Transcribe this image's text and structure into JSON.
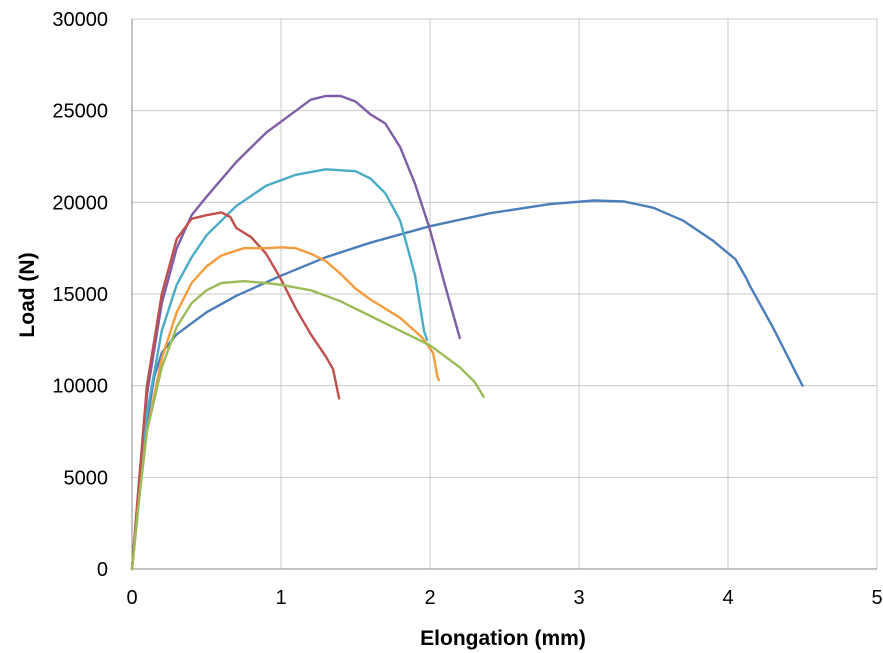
{
  "chart_data": {
    "type": "line",
    "title": "",
    "xlabel": "Elongation (mm)",
    "ylabel": "Load (N)",
    "xlim": [
      0,
      5
    ],
    "ylim": [
      0,
      30000
    ],
    "xticks": [
      0,
      1,
      2,
      3,
      4,
      5
    ],
    "yticks": [
      0,
      5000,
      10000,
      15000,
      20000,
      25000,
      30000
    ],
    "grid": true,
    "legend": "none",
    "series": [
      {
        "color": "#4a7ebb",
        "points": [
          [
            0,
            0
          ],
          [
            0.05,
            4000
          ],
          [
            0.1,
            8000
          ],
          [
            0.15,
            10500
          ],
          [
            0.2,
            11800
          ],
          [
            0.3,
            12800
          ],
          [
            0.5,
            14000
          ],
          [
            0.7,
            14900
          ],
          [
            1,
            16000
          ],
          [
            1.3,
            17000
          ],
          [
            1.6,
            17800
          ],
          [
            2,
            18700
          ],
          [
            2.4,
            19400
          ],
          [
            2.8,
            19900
          ],
          [
            3.1,
            20100
          ],
          [
            3.3,
            20050
          ],
          [
            3.5,
            19700
          ],
          [
            3.7,
            19000
          ],
          [
            3.9,
            17900
          ],
          [
            4.05,
            16900
          ],
          [
            4.12,
            15900
          ],
          [
            4.15,
            15400
          ],
          [
            4.3,
            13200
          ],
          [
            4.5,
            10000
          ]
        ]
      },
      {
        "color": "#7e5ea6",
        "points": [
          [
            0,
            0
          ],
          [
            0.05,
            5000
          ],
          [
            0.1,
            9500
          ],
          [
            0.2,
            14500
          ],
          [
            0.3,
            17500
          ],
          [
            0.4,
            19300
          ],
          [
            0.5,
            20300
          ],
          [
            0.7,
            22200
          ],
          [
            0.9,
            23800
          ],
          [
            1.1,
            25000
          ],
          [
            1.2,
            25600
          ],
          [
            1.25,
            25700
          ],
          [
            1.3,
            25800
          ],
          [
            1.4,
            25800
          ],
          [
            1.5,
            25500
          ],
          [
            1.6,
            24800
          ],
          [
            1.7,
            24300
          ],
          [
            1.8,
            23000
          ],
          [
            1.9,
            21000
          ],
          [
            2,
            18500
          ],
          [
            2.1,
            15500
          ],
          [
            2.2,
            12600
          ]
        ]
      },
      {
        "color": "#4aacc5",
        "points": [
          [
            0,
            0
          ],
          [
            0.05,
            4500
          ],
          [
            0.1,
            8500
          ],
          [
            0.2,
            13000
          ],
          [
            0.3,
            15500
          ],
          [
            0.4,
            17000
          ],
          [
            0.5,
            18200
          ],
          [
            0.7,
            19800
          ],
          [
            0.9,
            20900
          ],
          [
            1.1,
            21500
          ],
          [
            1.3,
            21800
          ],
          [
            1.5,
            21700
          ],
          [
            1.6,
            21300
          ],
          [
            1.7,
            20500
          ],
          [
            1.8,
            19000
          ],
          [
            1.9,
            16000
          ],
          [
            1.96,
            13000
          ],
          [
            1.98,
            12500
          ]
        ]
      },
      {
        "color": "#c0504d",
        "points": [
          [
            0,
            0
          ],
          [
            0.05,
            5000
          ],
          [
            0.1,
            10000
          ],
          [
            0.2,
            15000
          ],
          [
            0.3,
            18000
          ],
          [
            0.4,
            19100
          ],
          [
            0.5,
            19300
          ],
          [
            0.6,
            19450
          ],
          [
            0.66,
            19200
          ],
          [
            0.7,
            18600
          ],
          [
            0.8,
            18100
          ],
          [
            0.9,
            17200
          ],
          [
            1,
            15800
          ],
          [
            1.1,
            14200
          ],
          [
            1.2,
            12800
          ],
          [
            1.3,
            11600
          ],
          [
            1.35,
            10900
          ],
          [
            1.38,
            9700
          ],
          [
            1.39,
            9300
          ]
        ]
      },
      {
        "color": "#f59c3c",
        "points": [
          [
            0,
            0
          ],
          [
            0.05,
            4000
          ],
          [
            0.1,
            7500
          ],
          [
            0.2,
            11500
          ],
          [
            0.3,
            14000
          ],
          [
            0.4,
            15600
          ],
          [
            0.5,
            16500
          ],
          [
            0.6,
            17100
          ],
          [
            0.75,
            17500
          ],
          [
            0.9,
            17500
          ],
          [
            1,
            17550
          ],
          [
            1.1,
            17500
          ],
          [
            1.2,
            17200
          ],
          [
            1.3,
            16800
          ],
          [
            1.4,
            16100
          ],
          [
            1.5,
            15300
          ],
          [
            1.6,
            14700
          ],
          [
            1.8,
            13700
          ],
          [
            1.95,
            12600
          ],
          [
            2.02,
            11800
          ],
          [
            2.05,
            10500
          ],
          [
            2.06,
            10300
          ]
        ]
      },
      {
        "color": "#9bbb59",
        "points": [
          [
            0,
            0
          ],
          [
            0.05,
            4000
          ],
          [
            0.1,
            7500
          ],
          [
            0.2,
            11000
          ],
          [
            0.3,
            13200
          ],
          [
            0.4,
            14500
          ],
          [
            0.5,
            15200
          ],
          [
            0.6,
            15600
          ],
          [
            0.75,
            15700
          ],
          [
            0.9,
            15600
          ],
          [
            1,
            15500
          ],
          [
            1.2,
            15200
          ],
          [
            1.4,
            14600
          ],
          [
            1.6,
            13800
          ],
          [
            1.8,
            13000
          ],
          [
            2,
            12200
          ],
          [
            2.1,
            11600
          ],
          [
            2.2,
            11000
          ],
          [
            2.3,
            10200
          ],
          [
            2.36,
            9400
          ]
        ]
      }
    ]
  }
}
